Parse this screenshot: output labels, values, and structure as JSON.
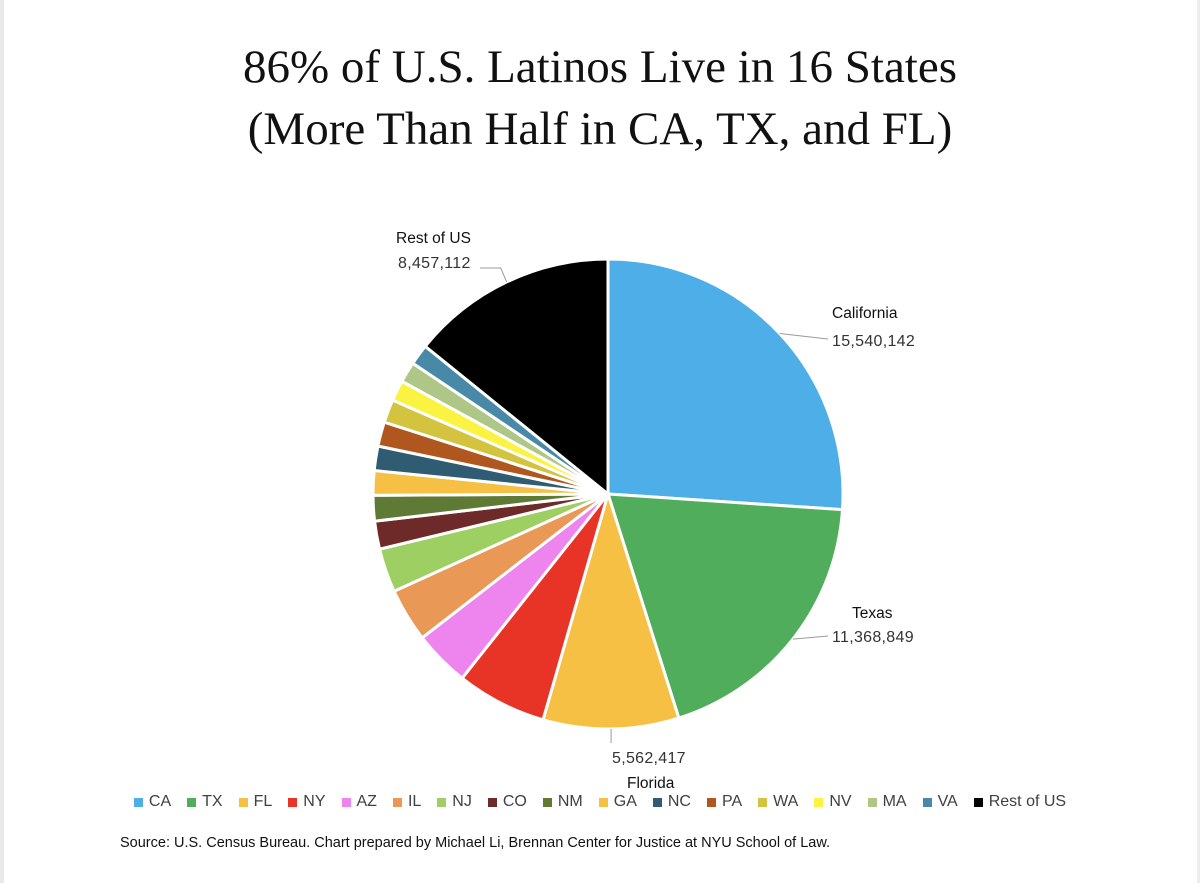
{
  "title_lines": [
    "86% of U.S. Latinos Live in 16 States",
    "(More Than Half in CA, TX, and FL)"
  ],
  "source": "Source: U.S. Census Bureau. Chart prepared by Michael Li, Brennan Center for Justice at NYU School of Law.",
  "chart_data": {
    "type": "pie",
    "title": "86% of U.S. Latinos Live in 16 States (More Than Half in CA, TX, and FL)",
    "slices": [
      {
        "label": "CA",
        "value": 15540142,
        "color": "#4eaee8"
      },
      {
        "label": "TX",
        "value": 11368849,
        "color": "#50ad5b"
      },
      {
        "label": "FL",
        "value": 5562417,
        "color": "#f6c045"
      },
      {
        "label": "NY",
        "value": 3700000,
        "color": "#e83426"
      },
      {
        "label": "AZ",
        "value": 2300000,
        "color": "#ee84ee"
      },
      {
        "label": "IL",
        "value": 2200000,
        "color": "#ea9856"
      },
      {
        "label": "NJ",
        "value": 1800000,
        "color": "#9dcf63"
      },
      {
        "label": "CO",
        "value": 1150000,
        "color": "#6e2a28"
      },
      {
        "label": "NM",
        "value": 1050000,
        "color": "#5e7a35"
      },
      {
        "label": "GA",
        "value": 1000000,
        "color": "#f6c045"
      },
      {
        "label": "NC",
        "value": 1000000,
        "color": "#2f5c72"
      },
      {
        "label": "PA",
        "value": 1000000,
        "color": "#b0561f"
      },
      {
        "label": "WA",
        "value": 950000,
        "color": "#d3c33e"
      },
      {
        "label": "NV",
        "value": 850000,
        "color": "#fbf341"
      },
      {
        "label": "MA",
        "value": 850000,
        "color": "#aec787"
      },
      {
        "label": "VA",
        "value": 850000,
        "color": "#4889a8"
      },
      {
        "label": "Rest of US",
        "value": 8457112,
        "color": "#000000"
      }
    ],
    "data_labels": [
      {
        "slice": "CA",
        "name": "California",
        "value_text": "15,540,142"
      },
      {
        "slice": "TX",
        "name": "Texas",
        "value_text": "11,368,849"
      },
      {
        "slice": "FL",
        "name": "Florida",
        "value_text": "5,562,417"
      },
      {
        "slice": "Rest of US",
        "name": "Rest of US",
        "value_text": "8,457,112"
      }
    ],
    "legend_position": "bottom",
    "start_angle": "12 o'clock, clockwise"
  }
}
